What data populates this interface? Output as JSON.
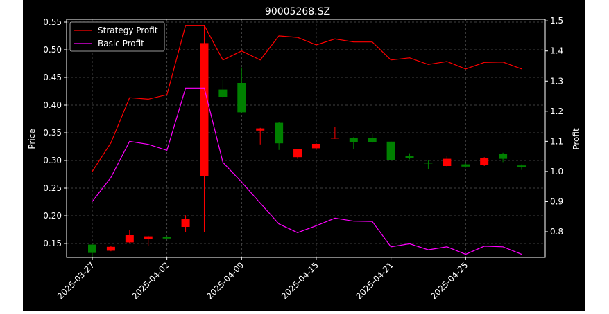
{
  "chart_data": {
    "type": "candlestick",
    "title": "90005268.SZ",
    "xlabel": "",
    "ylabel_left": "Price",
    "ylabel_right": "Profit",
    "ylim_left": [
      0.125,
      0.555
    ],
    "ylim_right": [
      0.715,
      1.505
    ],
    "left_ticks": [
      "0.15",
      "0.20",
      "0.25",
      "0.30",
      "0.35",
      "0.40",
      "0.45",
      "0.50",
      "0.55"
    ],
    "right_ticks": [
      "0.8",
      "0.9",
      "1.0",
      "1.1",
      "1.2",
      "1.3",
      "1.4",
      "1.5"
    ],
    "x_ticks": [
      "2025-03-27",
      "2025-04-02",
      "2025-04-09",
      "2025-04-15",
      "2025-04-21",
      "2025-04-25"
    ],
    "x_tick_index": [
      0,
      4,
      8,
      12,
      16,
      20
    ],
    "grid": true,
    "legend_position": "top-left",
    "colors": {
      "up": "#ff0000",
      "down": "#008000",
      "strategy": "#ff0000",
      "basic": "#ff00ff",
      "background": "#000000",
      "grid": "#555555"
    },
    "candles": [
      {
        "open": 0.148,
        "close": 0.133,
        "high": 0.149,
        "low": 0.126
      },
      {
        "open": 0.137,
        "close": 0.144,
        "high": 0.145,
        "low": 0.136
      },
      {
        "open": 0.152,
        "close": 0.165,
        "high": 0.175,
        "low": 0.151
      },
      {
        "open": 0.158,
        "close": 0.163,
        "high": 0.164,
        "low": 0.145
      },
      {
        "open": 0.162,
        "close": 0.159,
        "high": 0.163,
        "low": 0.158
      },
      {
        "open": 0.18,
        "close": 0.195,
        "high": 0.201,
        "low": 0.17
      },
      {
        "open": 0.272,
        "close": 0.512,
        "high": 0.545,
        "low": 0.17
      },
      {
        "open": 0.428,
        "close": 0.415,
        "high": 0.445,
        "low": 0.413
      },
      {
        "open": 0.44,
        "close": 0.387,
        "high": 0.468,
        "low": 0.385
      },
      {
        "open": 0.354,
        "close": 0.358,
        "high": 0.359,
        "low": 0.329
      },
      {
        "open": 0.368,
        "close": 0.331,
        "high": 0.369,
        "low": 0.319
      },
      {
        "open": 0.306,
        "close": 0.32,
        "high": 0.321,
        "low": 0.303
      },
      {
        "open": 0.322,
        "close": 0.33,
        "high": 0.331,
        "low": 0.321
      },
      {
        "open": 0.34,
        "close": 0.341,
        "high": 0.36,
        "low": 0.339
      },
      {
        "open": 0.341,
        "close": 0.333,
        "high": 0.342,
        "low": 0.321
      },
      {
        "open": 0.341,
        "close": 0.333,
        "high": 0.348,
        "low": 0.332
      },
      {
        "open": 0.334,
        "close": 0.3,
        "high": 0.335,
        "low": 0.299
      },
      {
        "open": 0.308,
        "close": 0.304,
        "high": 0.313,
        "low": 0.302
      },
      {
        "open": 0.296,
        "close": 0.295,
        "high": 0.3,
        "low": 0.285
      },
      {
        "open": 0.29,
        "close": 0.303,
        "high": 0.308,
        "low": 0.288
      },
      {
        "open": 0.293,
        "close": 0.289,
        "high": 0.296,
        "low": 0.287
      },
      {
        "open": 0.292,
        "close": 0.305,
        "high": 0.306,
        "low": 0.29
      },
      {
        "open": 0.312,
        "close": 0.303,
        "high": 0.314,
        "low": 0.297
      },
      {
        "open": 0.291,
        "close": 0.288,
        "high": 0.293,
        "low": 0.283
      }
    ],
    "series": [
      {
        "name": "Strategy Profit",
        "values": [
          1.0,
          1.095,
          1.245,
          1.24,
          1.255,
          1.485,
          1.485,
          1.37,
          1.4,
          1.37,
          1.45,
          1.445,
          1.42,
          1.44,
          1.43,
          1.43,
          1.37,
          1.377,
          1.355,
          1.365,
          1.34,
          1.362,
          1.363,
          1.34
        ]
      },
      {
        "name": "Basic Profit",
        "values": [
          0.9,
          0.98,
          1.1,
          1.09,
          1.07,
          1.277,
          1.277,
          1.03,
          0.965,
          0.895,
          0.826,
          0.797,
          0.82,
          0.845,
          0.835,
          0.834,
          0.75,
          0.76,
          0.74,
          0.75,
          0.725,
          0.752,
          0.75,
          0.725
        ]
      }
    ]
  }
}
